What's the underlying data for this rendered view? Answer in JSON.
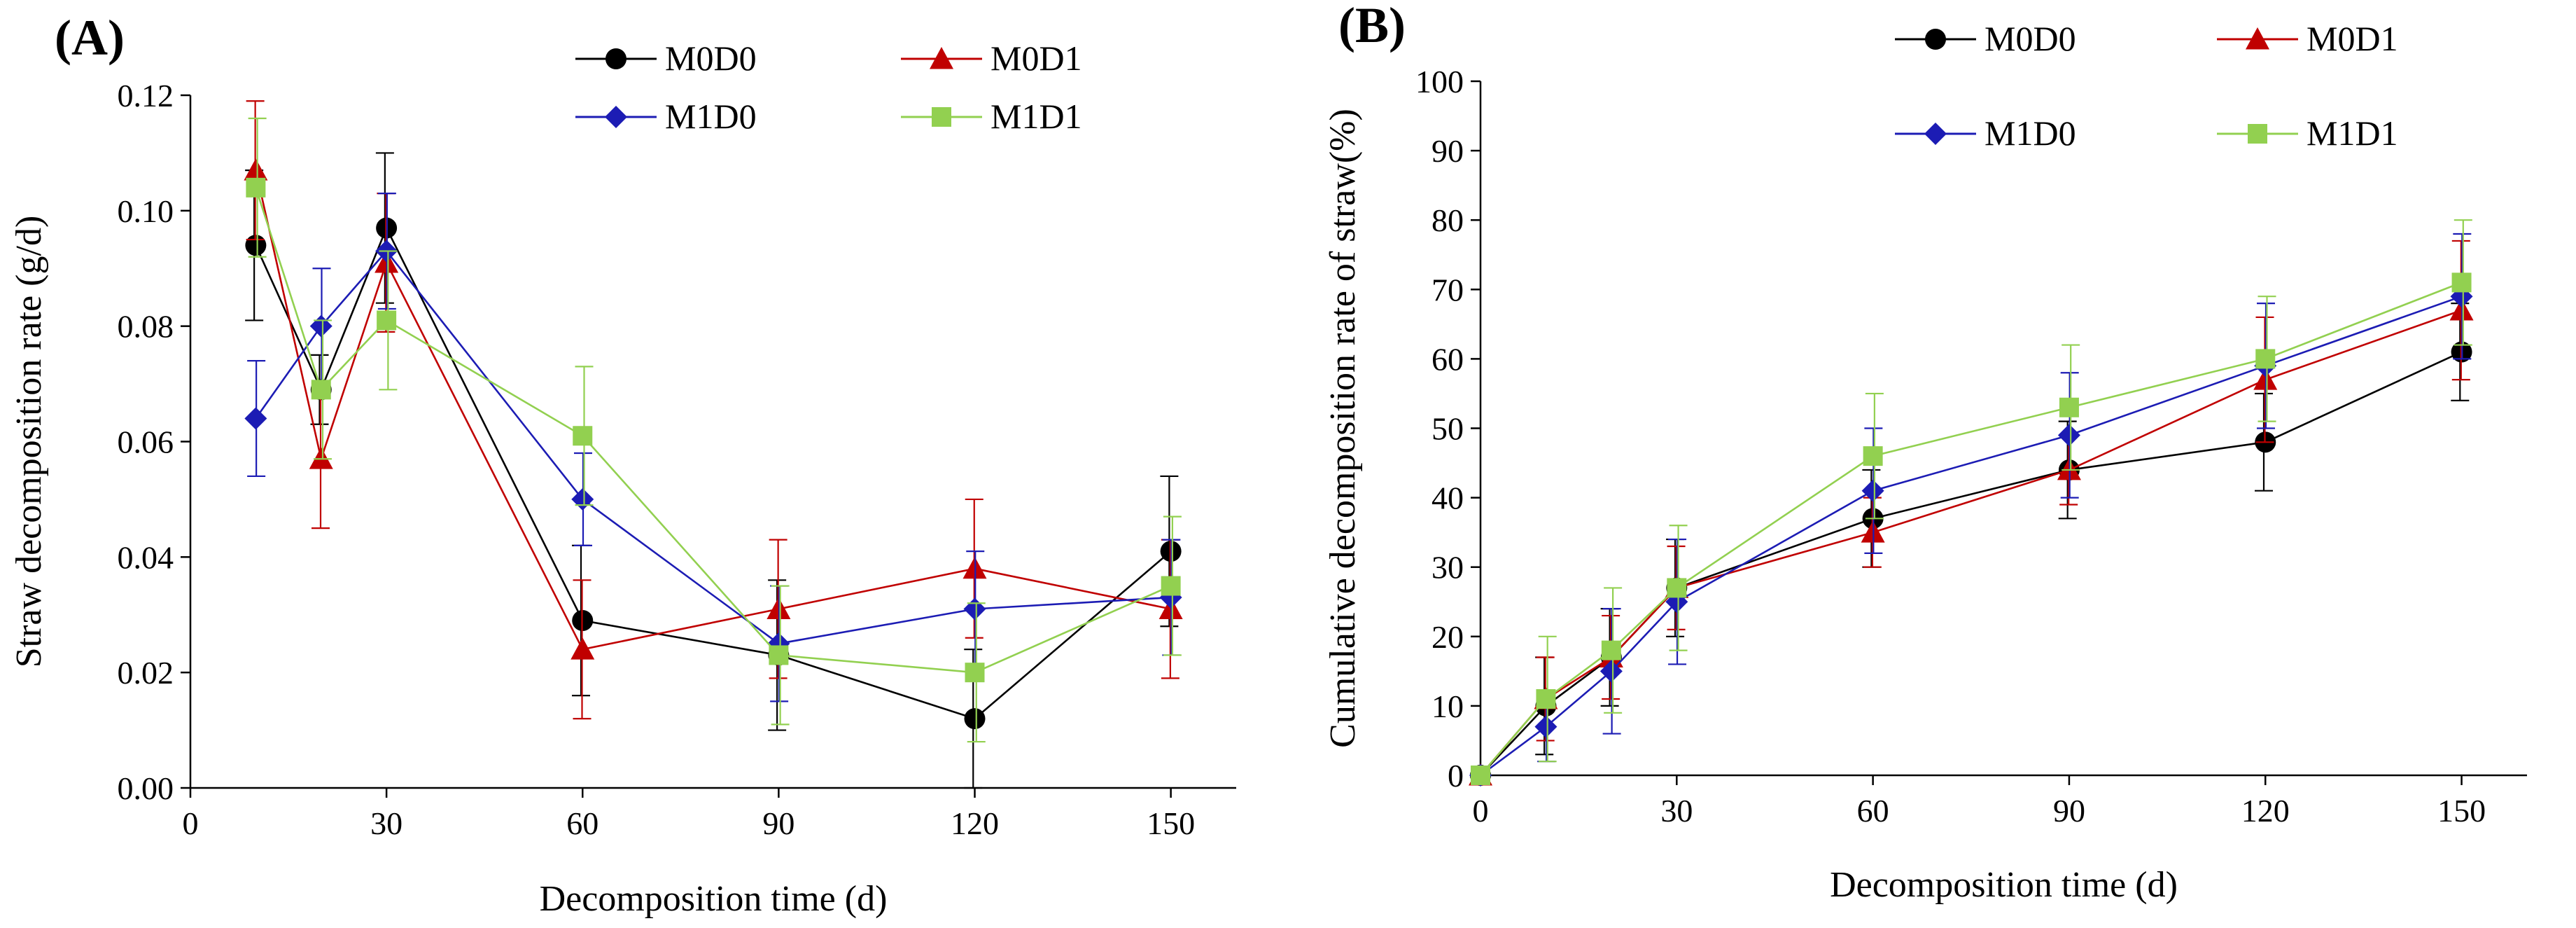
{
  "chart_data": [
    {
      "type": "line",
      "panel_label": "(A)",
      "title": "",
      "xlabel": "Decomposition time (d)",
      "ylabel": "Straw decomposition rate (g/d)",
      "xlim": [
        0,
        160
      ],
      "ylim": [
        0,
        0.12
      ],
      "x_ticks": [
        0,
        30,
        60,
        90,
        120,
        150
      ],
      "y_ticks": [
        "0.00",
        "0.02",
        "0.04",
        "0.06",
        "0.08",
        "0.10",
        "0.12"
      ],
      "grid": false,
      "legend_position": "top-right",
      "series": [
        {
          "name": "M0D0",
          "color": "#000000",
          "marker": "circle",
          "x": [
            10,
            20,
            30,
            60,
            90,
            120,
            150
          ],
          "values": [
            0.094,
            0.069,
            0.097,
            0.029,
            0.023,
            0.012,
            0.041
          ],
          "errors": [
            0.013,
            0.006,
            0.013,
            0.013,
            0.013,
            0.012,
            0.013
          ]
        },
        {
          "name": "M0D1",
          "color": "#c00000",
          "marker": "triangle",
          "x": [
            10,
            20,
            30,
            60,
            90,
            120,
            150
          ],
          "values": [
            0.107,
            0.057,
            0.091,
            0.024,
            0.031,
            0.038,
            0.031
          ],
          "errors": [
            0.012,
            0.012,
            0.012,
            0.012,
            0.012,
            0.012,
            0.012
          ]
        },
        {
          "name": "M1D0",
          "color": "#1c1cb4",
          "marker": "diamond",
          "x": [
            10,
            20,
            30,
            60,
            90,
            120,
            150
          ],
          "values": [
            0.064,
            0.08,
            0.093,
            0.05,
            0.025,
            0.031,
            0.033
          ],
          "errors": [
            0.01,
            0.01,
            0.01,
            0.008,
            0.01,
            0.01,
            0.01
          ]
        },
        {
          "name": "M1D1",
          "color": "#92d050",
          "marker": "square",
          "x": [
            10,
            20,
            30,
            60,
            90,
            120,
            150
          ],
          "values": [
            0.104,
            0.069,
            0.081,
            0.061,
            0.023,
            0.02,
            0.035
          ],
          "errors": [
            0.012,
            0.012,
            0.012,
            0.012,
            0.012,
            0.012,
            0.012
          ]
        }
      ]
    },
    {
      "type": "line",
      "panel_label": "(B)",
      "title": "",
      "xlabel": "Decomposition time (d)",
      "ylabel": "Cumulative decomposition rate of straw(%)",
      "xlim": [
        0,
        160
      ],
      "ylim": [
        0,
        100
      ],
      "x_ticks": [
        0,
        30,
        60,
        90,
        120,
        150
      ],
      "y_ticks": [
        "0",
        "10",
        "20",
        "30",
        "40",
        "50",
        "60",
        "70",
        "80",
        "90",
        "100"
      ],
      "grid": false,
      "legend_position": "top-right",
      "series": [
        {
          "name": "M0D0",
          "color": "#000000",
          "marker": "circle",
          "x": [
            0,
            10,
            20,
            30,
            60,
            90,
            120,
            150
          ],
          "values": [
            0,
            10,
            17,
            27,
            37,
            44,
            48,
            61
          ],
          "errors": [
            0,
            7,
            7,
            7,
            7,
            7,
            7,
            7
          ]
        },
        {
          "name": "M0D1",
          "color": "#c00000",
          "marker": "triangle",
          "x": [
            0,
            10,
            20,
            30,
            60,
            90,
            120,
            150
          ],
          "values": [
            0,
            11,
            17,
            27,
            35,
            44,
            57,
            67
          ],
          "errors": [
            0,
            6,
            6,
            6,
            5,
            5,
            9,
            10
          ]
        },
        {
          "name": "M1D0",
          "color": "#1c1cb4",
          "marker": "diamond",
          "x": [
            0,
            10,
            20,
            30,
            60,
            90,
            120,
            150
          ],
          "values": [
            0,
            7,
            15,
            25,
            41,
            49,
            59,
            69
          ],
          "errors": [
            0,
            5,
            9,
            9,
            9,
            9,
            9,
            9
          ]
        },
        {
          "name": "M1D1",
          "color": "#92d050",
          "marker": "square",
          "x": [
            0,
            10,
            20,
            30,
            60,
            90,
            120,
            150
          ],
          "values": [
            0,
            11,
            18,
            27,
            46,
            53,
            60,
            71
          ],
          "errors": [
            0,
            9,
            9,
            9,
            9,
            9,
            9,
            9
          ]
        }
      ]
    }
  ]
}
